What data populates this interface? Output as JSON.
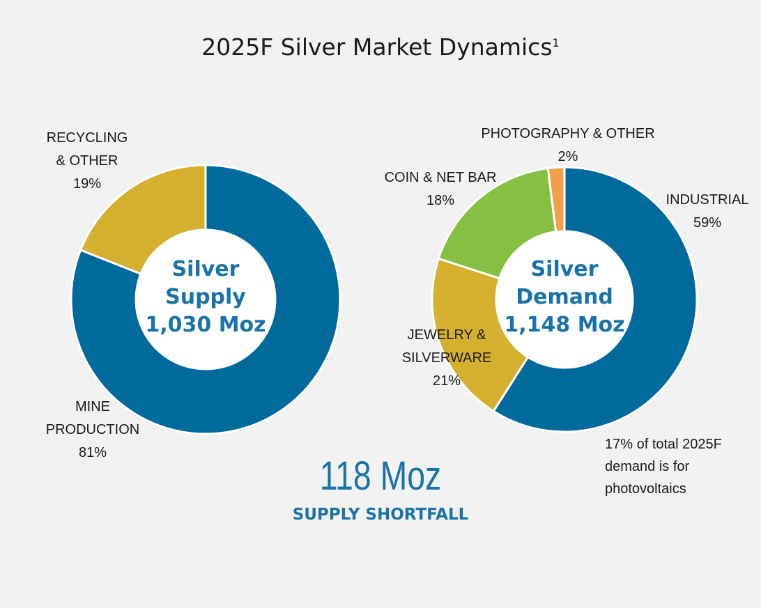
{
  "title": "2025F Silver Market Dynamics",
  "title_note": "1",
  "chart_data": [
    {
      "type": "donut",
      "center_title": "Silver Supply",
      "center_total": "1,030 Moz",
      "categories": [
        "MINE PRODUCTION",
        "RECYCLING & OTHER"
      ],
      "values": [
        81,
        19
      ],
      "value_labels": [
        "81%",
        "19%"
      ],
      "colors": [
        "#006a9c",
        "#d4b02e"
      ]
    },
    {
      "type": "donut",
      "center_title": "Silver Demand",
      "center_total": "1,148 Moz",
      "categories": [
        "INDUSTRIAL",
        "JEWELRY & SILVERWARE",
        "COIN & NET BAR",
        "PHOTOGRAPHY & OTHER"
      ],
      "values": [
        59,
        21,
        18,
        2
      ],
      "value_labels": [
        "59%",
        "21%",
        "18%",
        "2%"
      ],
      "colors": [
        "#006a9c",
        "#d4b02e",
        "#86c043",
        "#f0a048"
      ]
    }
  ],
  "shortfall": "118 Moz",
  "shortfall_label": "SUPPLY SHORTFALL",
  "note": "17% of total 2025F demand is for photovoltaics"
}
